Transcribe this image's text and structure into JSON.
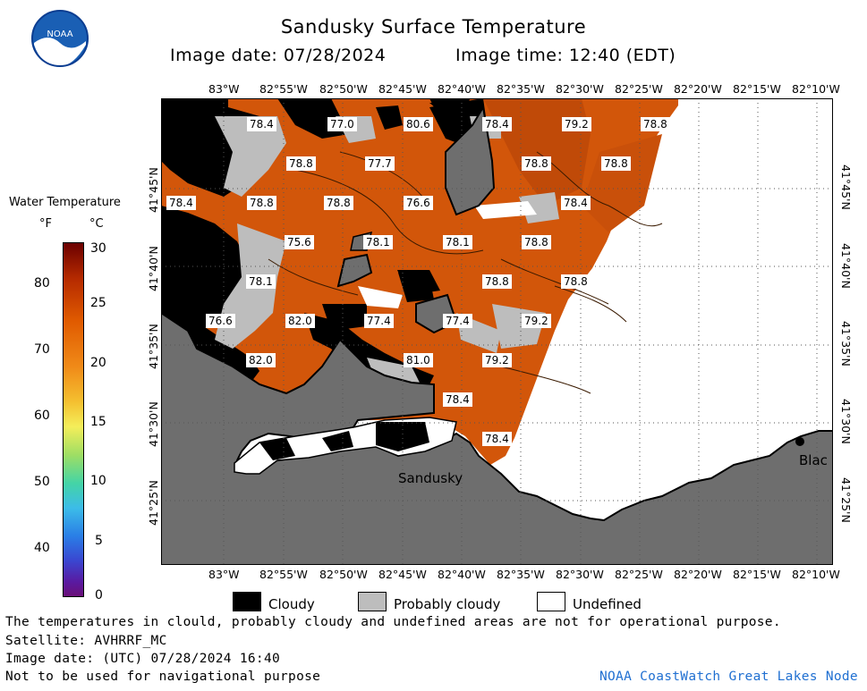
{
  "title": "Sandusky Surface Temperature",
  "image_date_line": "Image date: 07/28/2024",
  "image_time_line": "Image time: 12:40 (EDT)",
  "colorbar": {
    "title": "Water Temperature",
    "unit_f": "°F",
    "unit_c": "°C",
    "f_ticks": [
      "80",
      "70",
      "60",
      "50",
      "40"
    ],
    "c_ticks": [
      "30",
      "25",
      "20",
      "15",
      "10",
      "5",
      "0"
    ]
  },
  "lon_ticks": [
    "83°W",
    "82°55'W",
    "82°50'W",
    "82°45'W",
    "82°40'W",
    "82°35'W",
    "82°30'W",
    "82°25'W",
    "82°20'W",
    "82°15'W",
    "82°10'W"
  ],
  "lat_ticks": [
    "41°45'N",
    "41°40'N",
    "41°35'N",
    "41°30'N",
    "41°25'N"
  ],
  "temperature_labels": [
    "78.4",
    "77.0",
    "80.6",
    "78.4",
    "79.2",
    "78.8",
    "78.8",
    "77.7",
    "78.8",
    "78.8",
    "78.4",
    "78.8",
    "78.8",
    "76.6",
    "78.4",
    "75.6",
    "78.1",
    "78.1",
    "78.8",
    "78.1",
    "78.8",
    "78.8",
    "76.6",
    "82.0",
    "77.4",
    "77.4",
    "79.2",
    "82.0",
    "81.0",
    "79.2",
    "78.4",
    "78.4"
  ],
  "places": {
    "sandusky": "Sandusky",
    "blac": "Blac"
  },
  "legend": {
    "cloudy": "Cloudy",
    "probably_cloudy": "Probably cloudy",
    "undefined": "Undefined"
  },
  "colors": {
    "water": "#d2560a",
    "cloud": "#000000",
    "probably_cloudy": "#bdbdbd",
    "land": "#6e6e6e",
    "undefined": "#ffffff"
  },
  "footer": {
    "line1": "The temperatures in clould, probably cloudy and undefined areas are not for operational purpose.",
    "line2": "Satellite: AVHRRF_MC",
    "line3": "Image date: (UTC) 07/28/2024  16:40",
    "line4": "Not to be used for navigational purpose",
    "credit": "NOAA CoastWatch Great Lakes Node"
  },
  "logo_text": "NOAA"
}
